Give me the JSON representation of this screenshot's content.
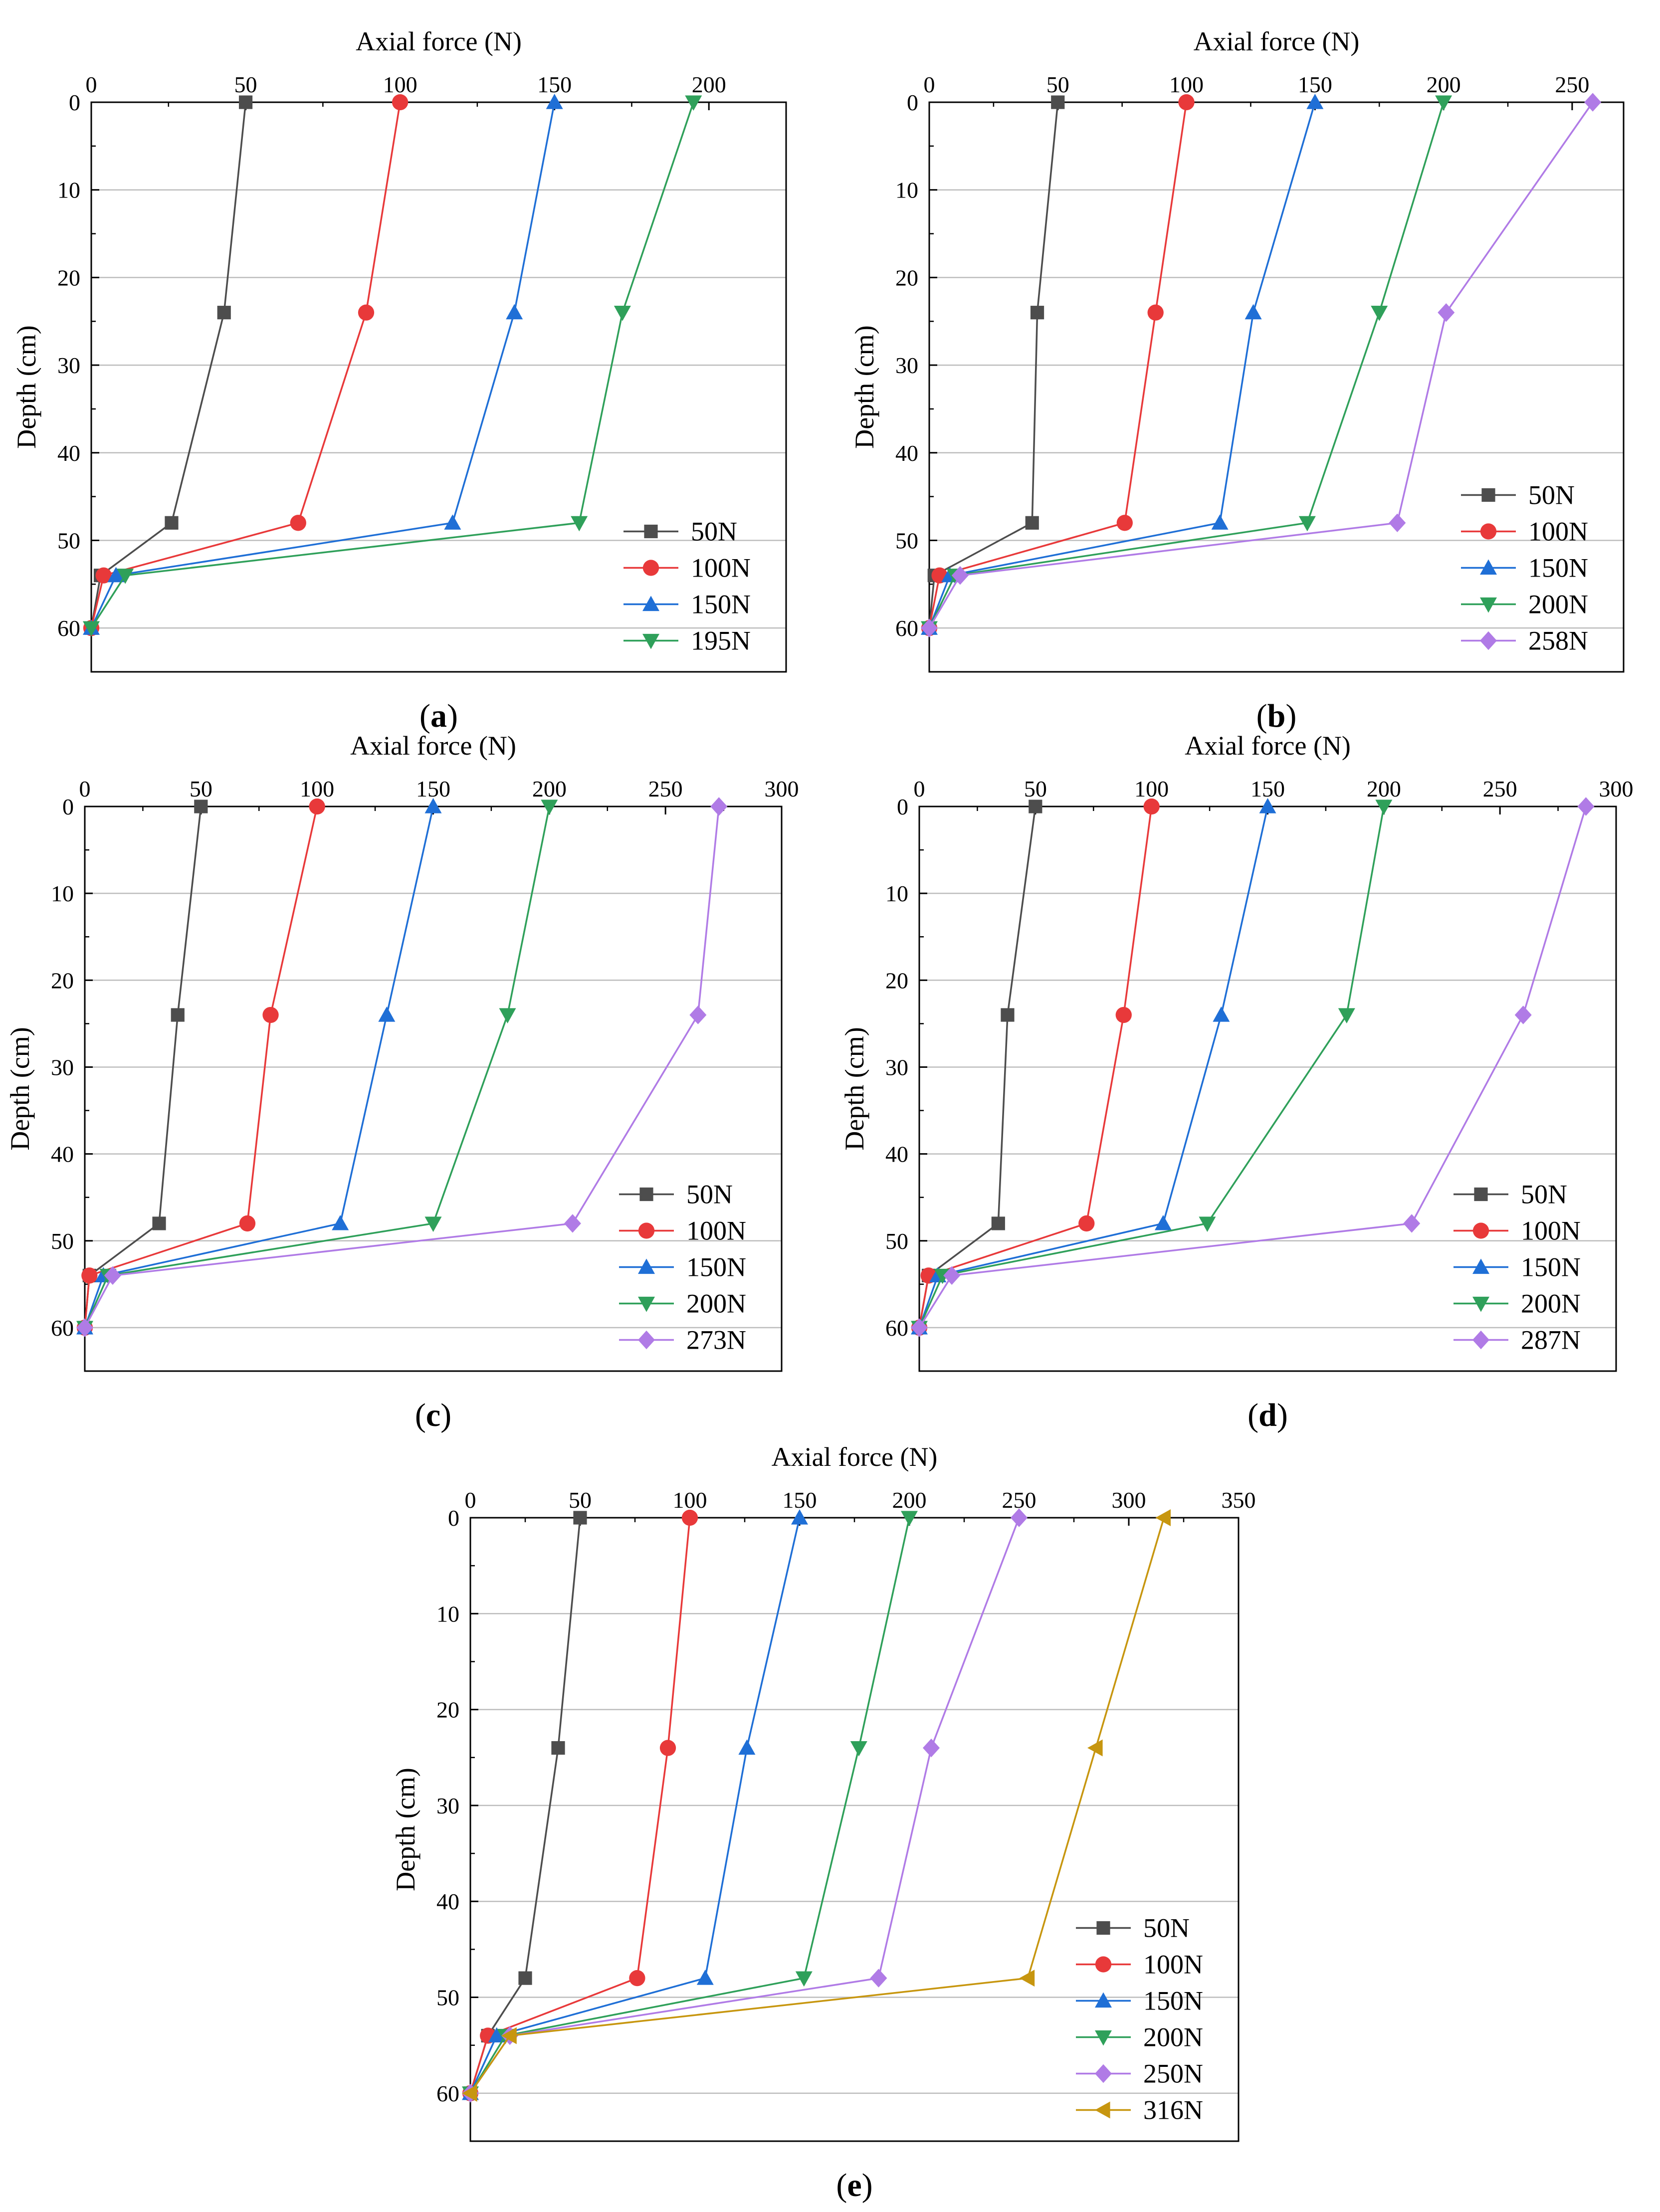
{
  "figure": {
    "panels": [
      "a",
      "b",
      "c",
      "d",
      "e"
    ]
  },
  "chart_data": [
    {
      "panel": "a",
      "type": "line",
      "caption": "a",
      "xlabel": "Axial force (N)",
      "ylabel": "Depth (cm)",
      "xlim": [
        0,
        225
      ],
      "ylim": [
        0,
        65
      ],
      "xticks": [
        0,
        50,
        100,
        150,
        200
      ],
      "yticks": [
        0,
        10,
        20,
        30,
        40,
        50,
        60
      ],
      "x_axis_position": "top",
      "y_inverted": true,
      "grid": "horizontal",
      "legend": "bottom-right",
      "series": [
        {
          "name": "50N",
          "color": "#4d4d4d",
          "marker": "square",
          "depth": [
            0,
            24,
            48,
            54,
            60
          ],
          "force": [
            50,
            43,
            26,
            3,
            0
          ]
        },
        {
          "name": "100N",
          "color": "#e8393a",
          "marker": "circle",
          "depth": [
            0,
            24,
            48,
            54,
            60
          ],
          "force": [
            100,
            89,
            67,
            4,
            0
          ]
        },
        {
          "name": "150N",
          "color": "#1f6fd6",
          "marker": "triangle-up",
          "depth": [
            0,
            24,
            48,
            54,
            60
          ],
          "force": [
            150,
            137,
            117,
            8,
            0
          ]
        },
        {
          "name": "195N",
          "color": "#2fa05a",
          "marker": "triangle-down",
          "depth": [
            0,
            24,
            48,
            54,
            60
          ],
          "force": [
            195,
            172,
            158,
            11,
            0
          ]
        }
      ]
    },
    {
      "panel": "b",
      "type": "line",
      "caption": "b",
      "xlabel": "Axial force (N)",
      "ylabel": "Depth (cm)",
      "xlim": [
        0,
        270
      ],
      "ylim": [
        0,
        65
      ],
      "xticks": [
        0,
        50,
        100,
        150,
        200,
        250
      ],
      "yticks": [
        0,
        10,
        20,
        30,
        40,
        50,
        60
      ],
      "x_axis_position": "top",
      "y_inverted": true,
      "grid": "horizontal",
      "legend": "bottom-right",
      "series": [
        {
          "name": "50N",
          "color": "#4d4d4d",
          "marker": "square",
          "depth": [
            0,
            24,
            48,
            54,
            60
          ],
          "force": [
            50,
            42,
            40,
            2,
            0
          ]
        },
        {
          "name": "100N",
          "color": "#e8393a",
          "marker": "circle",
          "depth": [
            0,
            24,
            48,
            54,
            60
          ],
          "force": [
            100,
            88,
            76,
            4,
            0
          ]
        },
        {
          "name": "150N",
          "color": "#1f6fd6",
          "marker": "triangle-up",
          "depth": [
            0,
            24,
            48,
            54,
            60
          ],
          "force": [
            150,
            126,
            113,
            8,
            0
          ]
        },
        {
          "name": "200N",
          "color": "#2fa05a",
          "marker": "triangle-down",
          "depth": [
            0,
            24,
            48,
            54,
            60
          ],
          "force": [
            200,
            175,
            147,
            10,
            0
          ]
        },
        {
          "name": "258N",
          "color": "#b07be6",
          "marker": "diamond",
          "depth": [
            0,
            24,
            48,
            54,
            60
          ],
          "force": [
            258,
            201,
            182,
            12,
            0
          ]
        }
      ]
    },
    {
      "panel": "c",
      "type": "line",
      "caption": "c",
      "xlabel": "Axial force (N)",
      "ylabel": "Depth (cm)",
      "xlim": [
        0,
        300
      ],
      "ylim": [
        0,
        65
      ],
      "xticks": [
        0,
        50,
        100,
        150,
        200,
        250,
        300
      ],
      "yticks": [
        0,
        10,
        20,
        30,
        40,
        50,
        60
      ],
      "x_axis_position": "top",
      "y_inverted": true,
      "grid": "horizontal",
      "legend": "bottom-right",
      "series": [
        {
          "name": "50N",
          "color": "#4d4d4d",
          "marker": "square",
          "depth": [
            0,
            24,
            48,
            54,
            60
          ],
          "force": [
            50,
            40,
            32,
            2,
            0
          ]
        },
        {
          "name": "100N",
          "color": "#e8393a",
          "marker": "circle",
          "depth": [
            0,
            24,
            48,
            54,
            60
          ],
          "force": [
            100,
            80,
            70,
            2,
            0
          ]
        },
        {
          "name": "150N",
          "color": "#1f6fd6",
          "marker": "triangle-up",
          "depth": [
            0,
            24,
            48,
            54,
            60
          ],
          "force": [
            150,
            130,
            110,
            8,
            0
          ]
        },
        {
          "name": "200N",
          "color": "#2fa05a",
          "marker": "triangle-down",
          "depth": [
            0,
            24,
            48,
            54,
            60
          ],
          "force": [
            200,
            182,
            150,
            10,
            0
          ]
        },
        {
          "name": "273N",
          "color": "#b07be6",
          "marker": "diamond",
          "depth": [
            0,
            24,
            48,
            54,
            60
          ],
          "force": [
            273,
            264,
            210,
            12,
            0
          ]
        }
      ]
    },
    {
      "panel": "d",
      "type": "line",
      "caption": "d",
      "xlabel": "Axial force (N)",
      "ylabel": "Depth (cm)",
      "xlim": [
        0,
        300
      ],
      "ylim": [
        0,
        65
      ],
      "xticks": [
        0,
        50,
        100,
        150,
        200,
        250,
        300
      ],
      "yticks": [
        0,
        10,
        20,
        30,
        40,
        50,
        60
      ],
      "x_axis_position": "top",
      "y_inverted": true,
      "grid": "horizontal",
      "legend": "bottom-right",
      "series": [
        {
          "name": "50N",
          "color": "#4d4d4d",
          "marker": "square",
          "depth": [
            0,
            24,
            48,
            54,
            60
          ],
          "force": [
            50,
            38,
            34,
            4,
            0
          ]
        },
        {
          "name": "100N",
          "color": "#e8393a",
          "marker": "circle",
          "depth": [
            0,
            24,
            48,
            54,
            60
          ],
          "force": [
            100,
            88,
            72,
            4,
            0
          ]
        },
        {
          "name": "150N",
          "color": "#1f6fd6",
          "marker": "triangle-up",
          "depth": [
            0,
            24,
            48,
            54,
            60
          ],
          "force": [
            150,
            130,
            105,
            8,
            0
          ]
        },
        {
          "name": "200N",
          "color": "#2fa05a",
          "marker": "triangle-down",
          "depth": [
            0,
            24,
            48,
            54,
            60
          ],
          "force": [
            200,
            184,
            124,
            10,
            0
          ]
        },
        {
          "name": "287N",
          "color": "#b07be6",
          "marker": "diamond",
          "depth": [
            0,
            24,
            48,
            54,
            60
          ],
          "force": [
            287,
            260,
            212,
            14,
            0
          ]
        }
      ]
    },
    {
      "panel": "e",
      "type": "line",
      "caption": "e",
      "xlabel": "Axial force (N)",
      "ylabel": "Depth (cm)",
      "xlim": [
        0,
        350
      ],
      "ylim": [
        0,
        65
      ],
      "xticks": [
        0,
        50,
        100,
        150,
        200,
        250,
        300,
        350
      ],
      "yticks": [
        0,
        10,
        20,
        30,
        40,
        50,
        60
      ],
      "x_axis_position": "top",
      "y_inverted": true,
      "grid": "horizontal",
      "legend": "bottom-right",
      "series": [
        {
          "name": "50N",
          "color": "#4d4d4d",
          "marker": "square",
          "depth": [
            0,
            24,
            48,
            54,
            60
          ],
          "force": [
            50,
            40,
            25,
            8,
            0
          ]
        },
        {
          "name": "100N",
          "color": "#e8393a",
          "marker": "circle",
          "depth": [
            0,
            24,
            48,
            54,
            60
          ],
          "force": [
            100,
            90,
            76,
            8,
            0
          ]
        },
        {
          "name": "150N",
          "color": "#1f6fd6",
          "marker": "triangle-up",
          "depth": [
            0,
            24,
            48,
            54,
            60
          ],
          "force": [
            150,
            126,
            107,
            12,
            0
          ]
        },
        {
          "name": "200N",
          "color": "#2fa05a",
          "marker": "triangle-down",
          "depth": [
            0,
            24,
            48,
            54,
            60
          ],
          "force": [
            200,
            177,
            152,
            16,
            0
          ]
        },
        {
          "name": "250N",
          "color": "#b07be6",
          "marker": "diamond",
          "depth": [
            0,
            24,
            48,
            54,
            60
          ],
          "force": [
            250,
            210,
            186,
            18,
            0
          ]
        },
        {
          "name": "316N",
          "color": "#c7960f",
          "marker": "triangle-left",
          "depth": [
            0,
            24,
            48,
            54,
            60
          ],
          "force": [
            316,
            285,
            254,
            18,
            0
          ]
        }
      ]
    }
  ]
}
